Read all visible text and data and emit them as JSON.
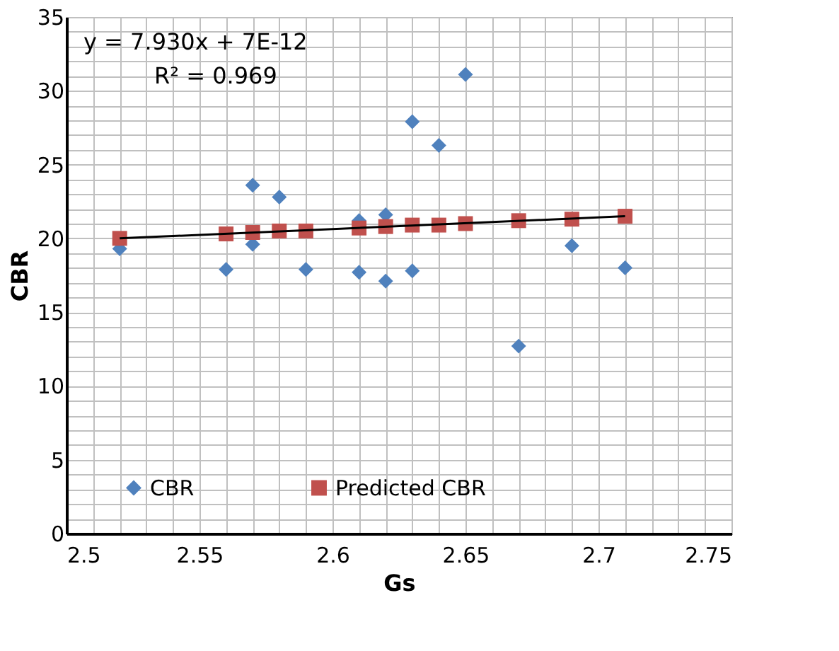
{
  "chart_data": {
    "type": "scatter",
    "xlabel": "Gs",
    "ylabel": "CBR",
    "annotations": [
      "y = 7.930x + 7E-12",
      "R² = 0.969"
    ],
    "series": [
      {
        "name": "CBR",
        "color": "#4f81bd",
        "marker": "diamond",
        "x": [
          2.52,
          2.56,
          2.57,
          2.57,
          2.58,
          2.59,
          2.61,
          2.61,
          2.62,
          2.62,
          2.63,
          2.63,
          2.64,
          2.65,
          2.67,
          2.69,
          2.71
        ],
        "values": [
          19.3,
          17.9,
          23.6,
          19.6,
          22.8,
          17.9,
          17.7,
          21.2,
          17.1,
          21.6,
          27.9,
          17.8,
          26.3,
          31.1,
          12.7,
          19.5,
          18.0
        ]
      },
      {
        "name": "Predicted CBR",
        "color": "#c0504d",
        "marker": "square",
        "x": [
          2.52,
          2.56,
          2.57,
          2.58,
          2.59,
          2.61,
          2.62,
          2.63,
          2.64,
          2.65,
          2.67,
          2.69,
          2.71
        ],
        "values": [
          20.0,
          20.3,
          20.4,
          20.5,
          20.5,
          20.7,
          20.8,
          20.9,
          20.9,
          21.0,
          21.2,
          21.3,
          21.5
        ]
      },
      {
        "type": "line",
        "color": "#000000",
        "x": [
          2.52,
          2.71
        ],
        "values": [
          20.0,
          21.5
        ]
      }
    ],
    "xlim": [
      2.5,
      2.75
    ],
    "xticks": [
      2.5,
      {
        "value": 2.51,
        "label": null
      },
      {
        "value": 2.52,
        "label": null
      },
      {
        "value": 2.53,
        "label": null
      },
      {
        "value": 2.54,
        "label": null
      },
      2.55,
      {
        "value": 2.56,
        "label": null
      },
      {
        "value": 2.57,
        "label": null
      },
      {
        "value": 2.58,
        "label": null
      },
      {
        "value": 2.59,
        "label": null
      },
      2.6,
      {
        "value": 2.61,
        "label": null
      },
      {
        "value": 2.62,
        "label": null
      },
      {
        "value": 2.63,
        "label": null
      },
      {
        "value": 2.64,
        "label": null
      },
      2.65,
      {
        "value": 2.66,
        "label": null
      },
      {
        "value": 2.67,
        "label": null
      },
      {
        "value": 2.68,
        "label": null
      },
      {
        "value": 2.69,
        "label": null
      },
      2.7,
      {
        "value": 2.71,
        "label": null
      },
      {
        "value": 2.72,
        "label": null
      },
      {
        "value": 2.73,
        "label": null
      },
      {
        "value": 2.74,
        "label": null
      },
      2.75
    ],
    "ylim": [
      0,
      35
    ],
    "yticks": [
      0,
      {
        "value": 1,
        "label": null
      },
      {
        "value": 2,
        "label": null
      },
      {
        "value": 3,
        "label": null
      },
      {
        "value": 4,
        "label": null
      },
      5,
      {
        "value": 6,
        "label": null
      },
      {
        "value": 7,
        "label": null
      },
      {
        "value": 8,
        "label": null
      },
      {
        "value": 9,
        "label": null
      },
      10,
      {
        "value": 11,
        "label": null
      },
      {
        "value": 12,
        "label": null
      },
      {
        "value": 13,
        "label": null
      },
      {
        "value": 14,
        "label": null
      },
      15,
      {
        "value": 16,
        "label": null
      },
      {
        "value": 17,
        "label": null
      },
      {
        "value": 18,
        "label": null
      },
      {
        "value": 19,
        "label": null
      },
      20,
      {
        "value": 21,
        "label": null
      },
      {
        "value": 22,
        "label": null
      },
      {
        "value": 23,
        "label": null
      },
      {
        "value": 24,
        "label": null
      },
      25,
      {
        "value": 26,
        "label": null
      },
      {
        "value": 27,
        "label": null
      },
      {
        "value": 28,
        "label": null
      },
      {
        "value": 29,
        "label": null
      },
      30,
      {
        "value": 31,
        "label": null
      },
      {
        "value": 32,
        "label": null
      },
      {
        "value": 33,
        "label": null
      },
      {
        "value": 34,
        "label": null
      },
      35
    ],
    "grid": true,
    "legend": "bottom"
  }
}
